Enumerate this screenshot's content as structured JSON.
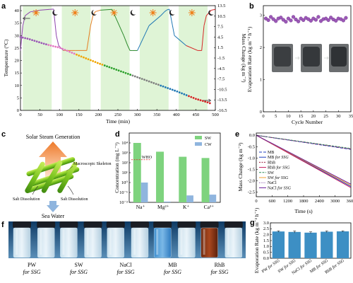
{
  "panels": {
    "a": {
      "label": "a",
      "xlabel": "Time (min)",
      "ylabel_left": "Temperature (°C)",
      "ylabel_right": "Mass Change (kg m⁻²)",
      "x_ticks": [
        "0",
        "50",
        "100",
        "150",
        "200",
        "250",
        "300",
        "350",
        "400",
        "450",
        "500"
      ],
      "y_left_ticks": [
        "0",
        "5",
        "10",
        "15",
        "20",
        "25",
        "30",
        "35",
        "40"
      ],
      "y_right_ticks": [
        "-16.5",
        "-13.5",
        "-10.5",
        "-7.5",
        "-4.5",
        "-1.5",
        "1.5",
        "4.5",
        "7.5",
        "10.5",
        "13.5"
      ]
    },
    "b": {
      "label": "b",
      "xlabel": "Cycle Number",
      "ylabel": "Evaporation Rate (kg m⁻² h⁻¹)",
      "x_ticks": [
        "0",
        "5",
        "10",
        "15",
        "20",
        "25",
        "30",
        "35"
      ],
      "y_ticks": [
        "0",
        "1",
        "2",
        "3"
      ]
    },
    "c": {
      "label": "c",
      "top": "Solar Steam Generation",
      "skeleton": "Macroscopic Skeleton",
      "salt_left": "Salt Dissolution",
      "salt_right": "Salt Dissolution",
      "bottom": "Sea Water"
    },
    "d": {
      "label": "d",
      "ylabel": "Concentration (mg L⁻¹)",
      "who": "WHO",
      "legend": [
        "SW",
        "CW"
      ],
      "categories": [
        "Na⁺",
        "Mg²⁺",
        "K⁺",
        "Ca²⁺"
      ],
      "y_ticks": [
        "10⁻²",
        "10⁻¹",
        "10⁰",
        "10¹",
        "10²",
        "10³",
        "10⁴"
      ]
    },
    "e": {
      "label": "e",
      "xlabel": "Time (s)",
      "ylabel": "Mass Change (kg m⁻²)",
      "x_ticks": [
        "0",
        "600",
        "1200",
        "1800",
        "2400",
        "3000",
        "3600"
      ],
      "y_ticks": [
        "0.0",
        "-0.5",
        "-1.0",
        "-1.5",
        "-2.0",
        "-2.5"
      ],
      "legend": [
        {
          "a": "MB",
          "b": ""
        },
        {
          "a": "MB ",
          "b": "for SSG"
        },
        {
          "a": "RhB",
          "b": ""
        },
        {
          "a": "RhB ",
          "b": "for SSG"
        },
        {
          "a": "SW",
          "b": ""
        },
        {
          "a": "SW ",
          "b": "for SSG"
        },
        {
          "a": "NaCl",
          "b": ""
        },
        {
          "a": "NaCl ",
          "b": "for SSG"
        }
      ]
    },
    "f": {
      "label": "f",
      "vials": [
        {
          "name": "PW",
          "sub": "for SSG"
        },
        {
          "name": "SW",
          "sub": "for SSG"
        },
        {
          "name": "NaCl",
          "sub": "for SSG"
        },
        {
          "name": "MB",
          "sub": "for SSG"
        },
        {
          "name": "RhB",
          "sub": "for SSG"
        }
      ]
    },
    "g": {
      "label": "g",
      "ylabel": "Evaporation Rate (kg m⁻² h⁻¹)",
      "y_ticks": [
        "0.0",
        "0.5",
        "1.0",
        "1.5",
        "2.0",
        "2.5",
        "3.0"
      ],
      "x_labels": [
        {
          "a": "PW ",
          "b": "for SSG"
        },
        {
          "a": "SW ",
          "b": "for SSG"
        },
        {
          "a": "NaCl ",
          "b": "for SSG"
        },
        {
          "a": "MB ",
          "b": "for SSG"
        },
        {
          "a": "RhB ",
          "b": "for SSG"
        }
      ]
    }
  },
  "chart_data": [
    {
      "id": "a",
      "type": "line",
      "xlabel": "Time (min)",
      "ylabel": "Temperature (°C)",
      "ylabel_right": "Mass Change (kg m⁻²)",
      "xlim": [
        0,
        500
      ],
      "ylim": [
        0,
        42
      ],
      "ylim_right": [
        -16.5,
        13.5
      ],
      "series": [
        {
          "axis": "left",
          "x": [
            0,
            6,
            12,
            25,
            50,
            75,
            85,
            92,
            98,
            110,
            140,
            170,
            180,
            186,
            192,
            205,
            235,
            265,
            275,
            281,
            287,
            300,
            330,
            360,
            370,
            376,
            382,
            395,
            425,
            455,
            465,
            471,
            477,
            490,
            500
          ],
          "values": [
            24,
            34,
            38,
            39.5,
            40.2,
            40.5,
            40.6,
            30,
            26,
            24,
            24,
            24,
            34,
            38,
            39.6,
            40.2,
            40.5,
            30,
            26,
            24,
            24,
            24,
            34,
            38,
            39.6,
            40.3,
            40.6,
            30,
            26,
            24,
            24,
            34,
            38,
            40.2,
            40.5
          ]
        },
        {
          "axis": "right",
          "x": [
            0,
            20,
            40,
            60,
            80,
            100,
            150,
            200,
            250,
            300,
            350,
            400,
            450,
            480,
            500
          ],
          "values": [
            4.5,
            4.0,
            3.3,
            2.6,
            2.0,
            1.5,
            -0.8,
            -3.0,
            -5.0,
            -7.0,
            -9.0,
            -11.0,
            -13.2,
            -14.2,
            -15.0
          ]
        }
      ]
    },
    {
      "id": "b",
      "type": "scatter",
      "xlabel": "Cycle Number",
      "ylabel": "Evaporation Rate (kg m⁻² h⁻¹)",
      "xlim": [
        0,
        35
      ],
      "ylim": [
        0,
        3.3
      ],
      "x": [
        1,
        2,
        3,
        4,
        5,
        6,
        7,
        8,
        9,
        10,
        11,
        12,
        13,
        14,
        15,
        16,
        17,
        18,
        19,
        20,
        21,
        22,
        23,
        24,
        25,
        26,
        27,
        28,
        29,
        30,
        31,
        32,
        33
      ],
      "values": [
        2.9,
        2.85,
        2.95,
        2.88,
        2.82,
        2.9,
        2.93,
        2.86,
        2.8,
        2.9,
        2.84,
        2.95,
        2.87,
        2.81,
        2.9,
        2.85,
        2.92,
        2.88,
        2.83,
        2.9,
        2.86,
        2.95,
        2.82,
        2.88,
        2.9,
        2.85,
        2.93,
        2.87,
        2.83,
        2.9,
        2.88,
        2.84,
        2.92
      ]
    },
    {
      "id": "d",
      "type": "bar",
      "ylabel": "Concentration (mg L⁻¹)",
      "yscale": "log",
      "ylim": [
        0.01,
        100000
      ],
      "categories": [
        "Na⁺",
        "Mg²⁺",
        "K⁺",
        "Ca²⁺"
      ],
      "series": [
        {
          "name": "SW",
          "values": [
            10000,
            1300,
            400,
            300
          ]
        },
        {
          "name": "CW",
          "values": [
            1.0,
            0.012,
            0.05,
            0.06
          ]
        }
      ],
      "reference": {
        "label": "WHO",
        "value": 200
      }
    },
    {
      "id": "e",
      "type": "line",
      "xlabel": "Time (s)",
      "ylabel": "Mass Change (kg m⁻²)",
      "xlim": [
        0,
        3600
      ],
      "ylim": [
        -2.7,
        0.1
      ],
      "series": [
        {
          "name": "MB",
          "x": [
            0,
            3600
          ],
          "values": [
            0,
            -0.62
          ]
        },
        {
          "name": "MB for SSG",
          "x": [
            0,
            3600
          ],
          "values": [
            0,
            -2.25
          ]
        },
        {
          "name": "RhB",
          "x": [
            0,
            3600
          ],
          "values": [
            0,
            -0.6
          ]
        },
        {
          "name": "RhB for SSG",
          "x": [
            0,
            3600
          ],
          "values": [
            0,
            -2.3
          ]
        },
        {
          "name": "SW",
          "x": [
            0,
            3600
          ],
          "values": [
            0,
            -0.58
          ]
        },
        {
          "name": "SW for SSG",
          "x": [
            0,
            3600
          ],
          "values": [
            0,
            -2.2
          ]
        },
        {
          "name": "NaCl",
          "x": [
            0,
            3600
          ],
          "values": [
            0,
            -0.61
          ]
        },
        {
          "name": "NaCl for SSG",
          "x": [
            0,
            3600
          ],
          "values": [
            0,
            -2.15
          ]
        }
      ]
    },
    {
      "id": "g",
      "type": "bar",
      "ylabel": "Evaporation Rate (kg m⁻² h⁻¹)",
      "ylim": [
        0,
        3.0
      ],
      "categories": [
        "PW for SSG",
        "SW for SSG",
        "NaCl for SSG",
        "MB for SSG",
        "RhB for SSG"
      ],
      "values": [
        2.27,
        2.23,
        2.17,
        2.25,
        2.28
      ],
      "errors": [
        0.06,
        0.09,
        0.07,
        0.07,
        0.05
      ]
    }
  ],
  "colors": {
    "a_temp_seg": [
      "#8e44ad",
      "#e67e22",
      "#2c8a2c",
      "#1f78b4",
      "#d62728"
    ],
    "a_mass": [
      "#9b59b6",
      "#e377c2",
      "#f0a500",
      "#2ca02c",
      "#7f7f7f",
      "#1f77b4",
      "#d62728"
    ],
    "b_points": "#9b59b6",
    "d_sw": "#7ed37e",
    "d_cw": "#8fb5de",
    "d_who": "#d62728",
    "e_lines": [
      "#1f3fbf",
      "#1f3fbf",
      "#9b1c3d",
      "#c2185b",
      "#2e8b57",
      "#f0a030",
      "#7b3fa0",
      "#6a1b9a"
    ],
    "g_bar": "#3d8fc4",
    "sun": "#f07f1a"
  }
}
